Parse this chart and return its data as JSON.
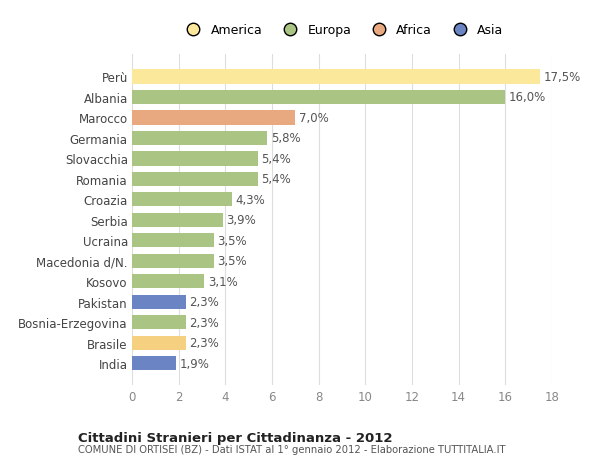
{
  "categories": [
    "India",
    "Brasile",
    "Bosnia-Erzegovina",
    "Pakistan",
    "Kosovo",
    "Macedonia d/N.",
    "Ucraina",
    "Serbia",
    "Croazia",
    "Romania",
    "Slovacchia",
    "Germania",
    "Marocco",
    "Albania",
    "Perù"
  ],
  "values": [
    1.9,
    2.3,
    2.3,
    2.3,
    3.1,
    3.5,
    3.5,
    3.9,
    4.3,
    5.4,
    5.4,
    5.8,
    7.0,
    16.0,
    17.5
  ],
  "colors": [
    "#6b85c4",
    "#f5d080",
    "#aac484",
    "#6b85c4",
    "#aac484",
    "#aac484",
    "#aac484",
    "#aac484",
    "#aac484",
    "#aac484",
    "#aac484",
    "#aac484",
    "#e8a880",
    "#aac484",
    "#fce89a"
  ],
  "legend_labels": [
    "America",
    "Europa",
    "Africa",
    "Asia"
  ],
  "legend_colors": [
    "#fce89a",
    "#aac484",
    "#e8a880",
    "#6b85c4"
  ],
  "xlim": [
    0,
    18
  ],
  "xticks": [
    0,
    2,
    4,
    6,
    8,
    10,
    12,
    14,
    16,
    18
  ],
  "title": "Cittadini Stranieri per Cittadinanza - 2012",
  "subtitle": "COMUNE DI ORTISEI (BZ) - Dati ISTAT al 1° gennaio 2012 - Elaborazione TUTTITALIA.IT",
  "bg_color": "#ffffff",
  "bar_height": 0.7,
  "label_fontsize": 8.5,
  "value_labels": [
    "1,9%",
    "2,3%",
    "2,3%",
    "2,3%",
    "3,1%",
    "3,5%",
    "3,5%",
    "3,9%",
    "4,3%",
    "5,4%",
    "5,4%",
    "5,8%",
    "7,0%",
    "16,0%",
    "17,5%"
  ]
}
